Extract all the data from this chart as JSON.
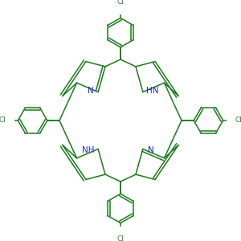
{
  "bg_color": "#ffffff",
  "bond_color": "#1a7a1a",
  "n_color": "#2222cc",
  "cl_color": "#228B22",
  "lw": 1.1,
  "figsize": [
    3.0,
    3.0
  ],
  "dpi": 100,
  "xlim": [
    -5.2,
    5.2
  ],
  "ylim": [
    -5.2,
    5.2
  ]
}
